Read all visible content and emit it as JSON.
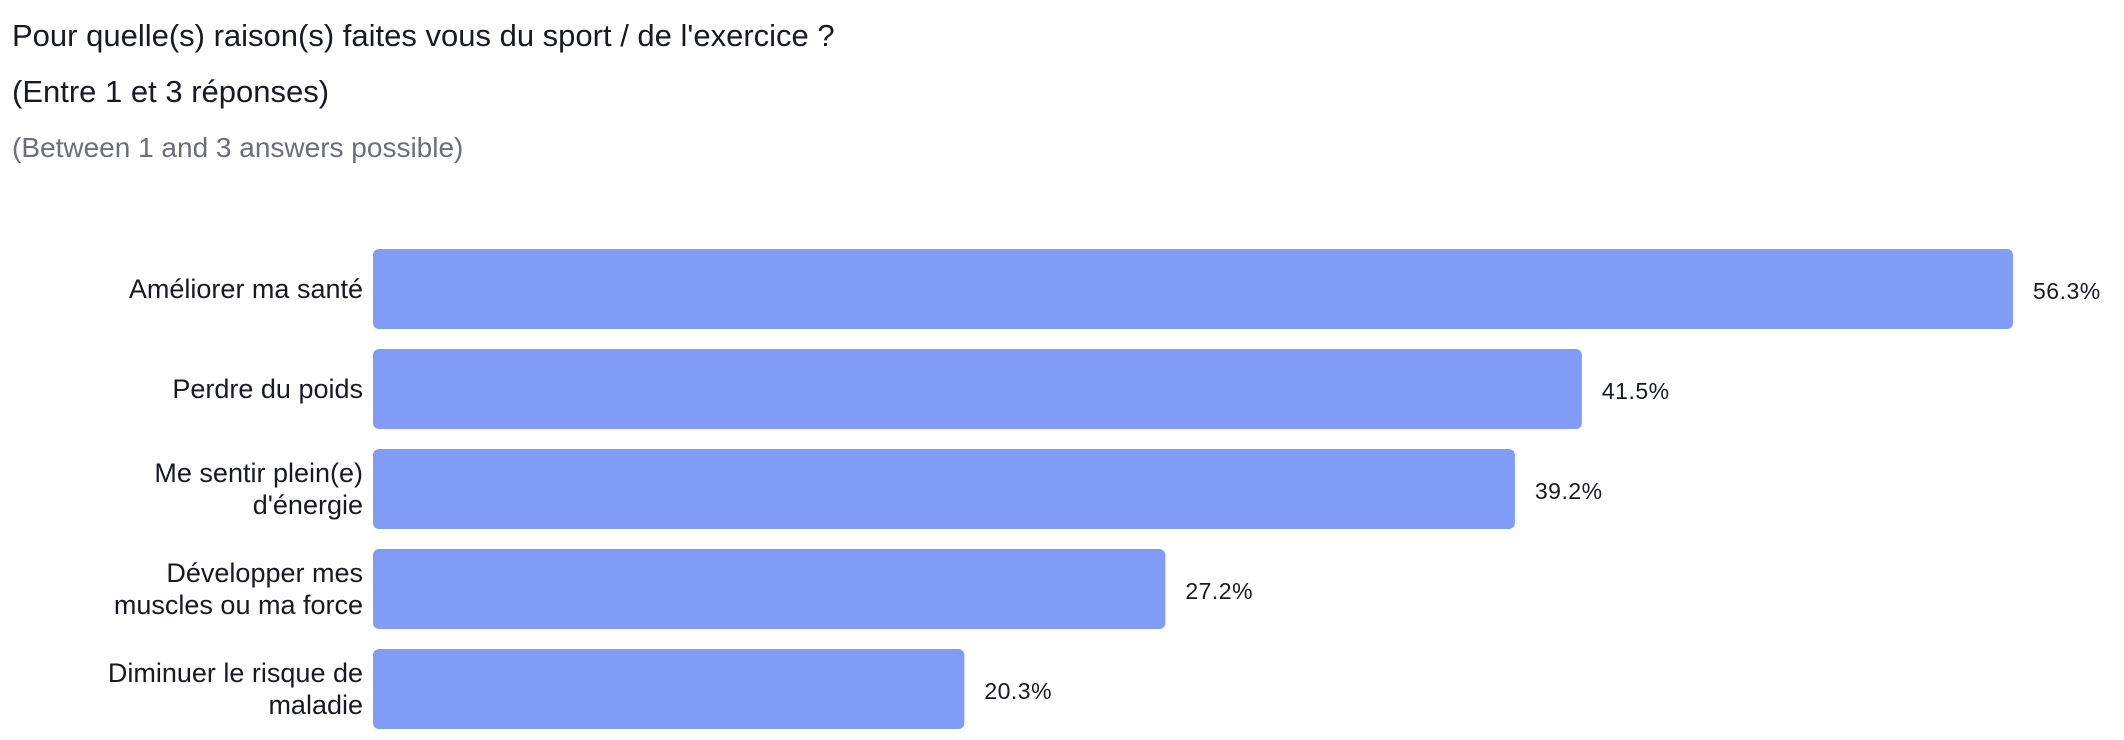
{
  "title": {
    "line1": "Pour quelle(s) raison(s) faites vous du sport / de l'exercice ?",
    "line2": "(Entre 1 et 3 réponses)",
    "subtitle": "(Between 1 and 3 answers possible)"
  },
  "colors": {
    "bar": "#809cf7",
    "text": "#171923",
    "subtitle": "#6b6f7b"
  },
  "chart_data": {
    "type": "bar",
    "orientation": "horizontal",
    "categories": [
      "Améliorer ma santé",
      "Perdre du poids",
      "Me sentir plein(e) d'énergie",
      "Développer mes muscles ou ma force",
      "Diminuer le risque de maladie"
    ],
    "category_lines": [
      [
        "Améliorer ma santé"
      ],
      [
        "Perdre du poids"
      ],
      [
        "Me sentir plein(e)",
        "d'énergie"
      ],
      [
        "Développer mes",
        "muscles ou ma force"
      ],
      [
        "Diminuer le risque de",
        "maladie"
      ]
    ],
    "values": [
      56.3,
      41.5,
      39.2,
      27.2,
      20.3
    ],
    "value_labels": [
      "56.3%",
      "41.5%",
      "39.2%",
      "27.2%",
      "20.3%"
    ],
    "unit": "%",
    "grid": false,
    "legend": "none"
  }
}
